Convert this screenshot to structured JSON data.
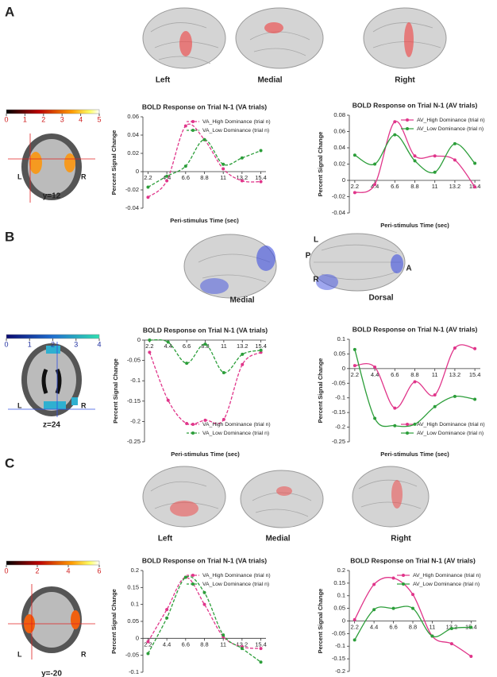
{
  "chart_data": [
    {
      "type": "line",
      "title": "BOLD Response on Trial N-1 (VA trials)",
      "ylabel": "Percent Signal Change",
      "xlabel": "Peri-stimulus Time (sec)",
      "x": [
        2.2,
        4.4,
        6.6,
        8.8,
        11,
        13.2,
        15.4
      ],
      "xticks": [
        2.2,
        4.4,
        6.6,
        8.8,
        11,
        13.2,
        15.4
      ],
      "xlim": [
        1.6,
        16
      ],
      "ylim": [
        -0.04,
        0.06
      ],
      "yticks": [
        -0.04,
        -0.02,
        0,
        0.02,
        0.04,
        0.06
      ],
      "legend": "upper right",
      "series": [
        {
          "name": "VA_High Dominance (trial n)",
          "color": "#e0358a",
          "line_style": "dashed",
          "values": [
            -0.028,
            -0.01,
            0.05,
            0.035,
            0.003,
            -0.01,
            -0.011
          ]
        },
        {
          "name": "VA_Low Dominance (trial n)",
          "color": "#2c9e3a",
          "line_style": "dashed",
          "values": [
            -0.017,
            -0.005,
            0.006,
            0.035,
            0.008,
            0.015,
            0.023
          ]
        }
      ]
    },
    {
      "type": "line",
      "title": "BOLD Response on Trial N-1 (AV trials)",
      "ylabel": "Percent Signal Change",
      "xlabel": "Peri-stimulus Time (sec)",
      "x": [
        2.2,
        4.4,
        6.6,
        8.8,
        11,
        13.2,
        15.4
      ],
      "xticks": [
        2.2,
        4.4,
        6.6,
        8.8,
        11,
        13.2,
        15.4
      ],
      "xlim": [
        1.6,
        16
      ],
      "ylim": [
        -0.04,
        0.08
      ],
      "yticks": [
        -0.04,
        -0.02,
        0,
        0.02,
        0.04,
        0.06,
        0.08
      ],
      "legend": "upper right",
      "series": [
        {
          "name": "AV_High Dominance (trial n)",
          "color": "#e0358a",
          "line_style": "solid",
          "values": [
            -0.015,
            -0.005,
            0.072,
            0.03,
            0.03,
            0.025,
            -0.008
          ]
        },
        {
          "name": "AV_Low Dominance (trial n)",
          "color": "#2c9e3a",
          "line_style": "solid",
          "values": [
            0.031,
            0.02,
            0.056,
            0.024,
            0.01,
            0.045,
            0.021
          ]
        }
      ]
    },
    {
      "type": "line",
      "title": "BOLD Response on Trial N-1 (VA trials)",
      "ylabel": "Percent Signal Change",
      "xlabel": "Peri-stimulus Time (sec)",
      "x": [
        2.2,
        4.4,
        6.6,
        8.8,
        11,
        13.2,
        15.4
      ],
      "xticks": [
        2.2,
        4.4,
        6.6,
        8.8,
        11,
        13.2,
        15.4
      ],
      "xlim": [
        1.6,
        16
      ],
      "ylim": [
        -0.25,
        0
      ],
      "yticks": [
        0,
        -0.05,
        -0.1,
        -0.15,
        -0.2,
        -0.25
      ],
      "legend": "lower right",
      "series": [
        {
          "name": "VA_High Dominance (trial n)",
          "color": "#e0358a",
          "line_style": "dashed",
          "values": [
            -0.03,
            -0.148,
            -0.205,
            -0.197,
            -0.195,
            -0.06,
            -0.03
          ]
        },
        {
          "name": "VA_Low Dominance (trial n)",
          "color": "#2c9e3a",
          "line_style": "dashed",
          "values": [
            0,
            -0.005,
            -0.057,
            -0.01,
            -0.08,
            -0.035,
            -0.025
          ]
        }
      ]
    },
    {
      "type": "line",
      "title": "BOLD Response on Trial N-1 (AV trials)",
      "ylabel": "Percent Signal Change",
      "xlabel": "Peri-stimulus Time (sec)",
      "x": [
        2.2,
        4.4,
        6.6,
        8.8,
        11,
        13.2,
        15.4
      ],
      "xticks": [
        2.2,
        4.4,
        6.6,
        8.8,
        11,
        13.2,
        15.4
      ],
      "xlim": [
        1.6,
        16
      ],
      "ylim": [
        -0.25,
        0.1
      ],
      "yticks": [
        0.1,
        0.05,
        0,
        -0.05,
        -0.1,
        -0.15,
        -0.2,
        -0.25
      ],
      "legend": "lower right",
      "series": [
        {
          "name": "AV_High Dominance (trial n)",
          "color": "#e0358a",
          "line_style": "solid",
          "values": [
            0.01,
            0.005,
            -0.135,
            -0.045,
            -0.09,
            0.07,
            0.068
          ]
        },
        {
          "name": "AV_Low Dominance (trial n)",
          "color": "#2c9e3a",
          "line_style": "solid",
          "values": [
            0.065,
            -0.17,
            -0.195,
            -0.19,
            -0.13,
            -0.095,
            -0.105
          ]
        }
      ]
    },
    {
      "type": "line",
      "title": "BOLD Response on Trial N-1 (VA trials)",
      "ylabel": "Percent Signal Change",
      "xlabel": "Peri-stimulus Time (sec)",
      "x": [
        2.2,
        4.4,
        6.6,
        8.8,
        11,
        13.2,
        15.4
      ],
      "xticks": [
        2.2,
        4.4,
        6.6,
        8.8,
        11,
        13.2,
        15.4
      ],
      "xlim": [
        1.6,
        16
      ],
      "ylim": [
        -0.1,
        0.2
      ],
      "yticks": [
        -0.1,
        -0.05,
        0,
        0.05,
        0.1,
        0.15,
        0.2
      ],
      "legend": "upper right",
      "series": [
        {
          "name": "VA_High Dominance (trial n)",
          "color": "#e0358a",
          "line_style": "dashed",
          "values": [
            -0.01,
            0.085,
            0.18,
            0.1,
            0.005,
            -0.025,
            -0.03
          ]
        },
        {
          "name": "VA_Low Dominance (trial n)",
          "color": "#2c9e3a",
          "line_style": "dashed",
          "values": [
            -0.045,
            0.06,
            0.18,
            0.135,
            0.01,
            -0.03,
            -0.07
          ]
        }
      ]
    },
    {
      "type": "line",
      "title": "BOLD Response on Trial N-1 (AV trials)",
      "ylabel": "Percent Signal Change",
      "xlabel": "Peri-stimulus Time (sec)",
      "x": [
        2.2,
        4.4,
        6.6,
        8.8,
        11,
        13.2,
        15.4
      ],
      "xticks": [
        2.2,
        4.4,
        6.6,
        8.8,
        11,
        13.2,
        15.4
      ],
      "xlim": [
        1.6,
        16
      ],
      "ylim": [
        -0.2,
        0.2
      ],
      "yticks": [
        -0.2,
        -0.15,
        -0.1,
        -0.05,
        0,
        0.05,
        0.1,
        0.15,
        0.2
      ],
      "legend": "upper right",
      "series": [
        {
          "name": "AV_High Dominance (trial n)",
          "color": "#e0358a",
          "line_style": "solid",
          "values": [
            0.005,
            0.145,
            0.17,
            0.105,
            -0.06,
            -0.09,
            -0.14
          ]
        },
        {
          "name": "AV_Low Dominance (trial n)",
          "color": "#2c9e3a",
          "line_style": "solid",
          "values": [
            -0.075,
            0.045,
            0.05,
            0.05,
            -0.06,
            -0.03,
            -0.025
          ]
        }
      ]
    }
  ],
  "panels": [
    {
      "label": "A",
      "brain_labels": [
        "Left",
        "Medial",
        "Right"
      ],
      "colorbar_lim": [
        0,
        5
      ],
      "colorbar_ticks": [
        0,
        1,
        2,
        3,
        4,
        5
      ],
      "tick_color": "#d02020",
      "slice_label": "y=12",
      "side_labels": [
        "L",
        "R"
      ]
    },
    {
      "label": "B",
      "brain_labels": [
        "Medial",
        "L",
        "P",
        "R",
        "A",
        "Dorsal"
      ],
      "colorbar_lim": [
        0,
        4
      ],
      "colorbar_ticks": [
        0,
        1,
        2,
        3,
        4
      ],
      "tick_color": "#1f2fa0",
      "slice_label": "z=24",
      "side_labels": [
        "L",
        "R"
      ]
    },
    {
      "label": "C",
      "brain_labels": [
        "Left",
        "Medial",
        "Right"
      ],
      "colorbar_lim": [
        0,
        6
      ],
      "colorbar_ticks": [
        0,
        2,
        4,
        6
      ],
      "tick_color": "#d02020",
      "slice_label": "y=-20",
      "side_labels": [
        "L",
        "R"
      ]
    }
  ]
}
